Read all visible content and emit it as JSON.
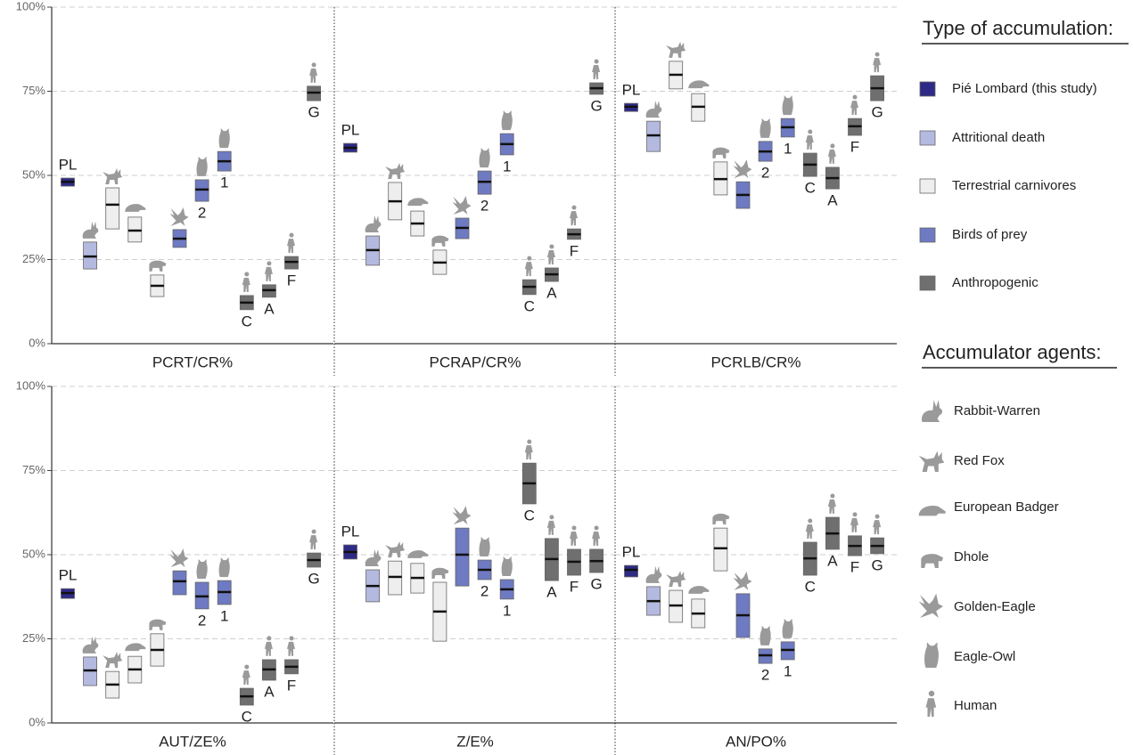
{
  "chart_data": {
    "type": "floating-box",
    "ylim": [
      0,
      100
    ],
    "yticks": [
      {
        "value": 0,
        "label": "0%"
      },
      {
        "value": 25,
        "label": "25%"
      },
      {
        "value": 50,
        "label": "50%"
      },
      {
        "value": 75,
        "label": "75%"
      },
      {
        "value": 100,
        "label": "100%"
      }
    ],
    "grid": true,
    "legend": {
      "type_title": "Type of accumulation:",
      "types": [
        {
          "name": "Pié Lombard (this study)",
          "color": "#2e2a86"
        },
        {
          "name": "Attritional death",
          "color": "#b4b9e0"
        },
        {
          "name": "Terrestrial carnivores",
          "color": "#eeeeee"
        },
        {
          "name": "Birds of prey",
          "color": "#6e7ac2"
        },
        {
          "name": "Anthropogenic",
          "color": "#6f6f6f"
        }
      ],
      "agent_title": "Accumulator agents:",
      "agents": [
        "Rabbit-Warren",
        "Red Fox",
        "European Badger",
        "Dhole",
        "Golden-Eagle",
        "Eagle-Owl",
        "Human"
      ]
    },
    "panels": [
      {
        "xlabel": "PCRT/CR%",
        "items": [
          {
            "type": "Pié Lombard (this study)",
            "label": "PL",
            "low": 46.8,
            "high": 49.2,
            "median": 48.1
          },
          {
            "type": "Attritional death",
            "agent": "Rabbit-Warren",
            "low": 22.2,
            "high": 30.2,
            "median": 25.9
          },
          {
            "type": "Terrestrial carnivores",
            "agent": "Red Fox",
            "low": 34.1,
            "high": 46.3,
            "median": 41.3
          },
          {
            "type": "Terrestrial carnivores",
            "agent": "European Badger",
            "low": 30.2,
            "high": 37.6,
            "median": 33.6
          },
          {
            "type": "Terrestrial carnivores",
            "agent": "Dhole",
            "low": 14.0,
            "high": 20.4,
            "median": 17.2
          },
          {
            "type": "Birds of prey",
            "agent": "Golden-Eagle",
            "low": 28.6,
            "high": 33.9,
            "median": 31.2
          },
          {
            "type": "Birds of prey",
            "agent": "Eagle-Owl",
            "label": "2",
            "low": 42.3,
            "high": 48.7,
            "median": 45.8
          },
          {
            "type": "Birds of prey",
            "agent": "Eagle-Owl",
            "label": "1",
            "low": 51.3,
            "high": 57.1,
            "median": 54.2
          },
          {
            "type": "Anthropogenic",
            "agent": "Human",
            "label": "C",
            "low": 10.1,
            "high": 14.3,
            "median": 12.2
          },
          {
            "type": "Anthropogenic",
            "agent": "Human",
            "label": "A",
            "low": 13.8,
            "high": 17.5,
            "median": 15.9
          },
          {
            "type": "Anthropogenic",
            "agent": "Human",
            "label": "F",
            "low": 22.2,
            "high": 25.9,
            "median": 24.3
          },
          {
            "type": "Anthropogenic",
            "agent": "Human",
            "label": "G",
            "low": 72.2,
            "high": 76.5,
            "median": 74.6
          }
        ]
      },
      {
        "xlabel": "PCRAP/CR%",
        "items": [
          {
            "type": "Pié Lombard (this study)",
            "label": "PL",
            "low": 56.9,
            "high": 59.5,
            "median": 58.2
          },
          {
            "type": "Attritional death",
            "agent": "Rabbit-Warren",
            "low": 23.3,
            "high": 32.0,
            "median": 27.8
          },
          {
            "type": "Terrestrial carnivores",
            "agent": "Red Fox",
            "low": 36.8,
            "high": 47.9,
            "median": 42.3
          },
          {
            "type": "Terrestrial carnivores",
            "agent": "European Badger",
            "low": 32.0,
            "high": 39.4,
            "median": 35.7
          },
          {
            "type": "Terrestrial carnivores",
            "agent": "Dhole",
            "low": 20.6,
            "high": 27.8,
            "median": 24.1
          },
          {
            "type": "Birds of prey",
            "agent": "Golden-Eagle",
            "low": 31.2,
            "high": 37.3,
            "median": 34.4
          },
          {
            "type": "Birds of prey",
            "agent": "Eagle-Owl",
            "label": "2",
            "low": 44.4,
            "high": 51.3,
            "median": 48.1
          },
          {
            "type": "Birds of prey",
            "agent": "Eagle-Owl",
            "label": "1",
            "low": 56.1,
            "high": 62.4,
            "median": 59.3
          },
          {
            "type": "Anthropogenic",
            "agent": "Human",
            "label": "C",
            "low": 14.6,
            "high": 19.0,
            "median": 16.9
          },
          {
            "type": "Anthropogenic",
            "agent": "Human",
            "label": "A",
            "low": 18.5,
            "high": 22.5,
            "median": 20.6
          },
          {
            "type": "Anthropogenic",
            "agent": "Human",
            "label": "F",
            "low": 31.0,
            "high": 34.1,
            "median": 32.5
          },
          {
            "type": "Anthropogenic",
            "agent": "Human",
            "label": "G",
            "low": 74.1,
            "high": 77.5,
            "median": 75.9
          }
        ]
      },
      {
        "xlabel": "PCRLB/CR%",
        "items": [
          {
            "type": "Pié Lombard (this study)",
            "label": "PL",
            "low": 69.0,
            "high": 71.4,
            "median": 70.4
          },
          {
            "type": "Attritional death",
            "agent": "Rabbit-Warren",
            "low": 57.1,
            "high": 66.1,
            "median": 61.9
          },
          {
            "type": "Terrestrial carnivores",
            "agent": "Red Fox",
            "low": 75.7,
            "high": 83.9,
            "median": 79.9
          },
          {
            "type": "Terrestrial carnivores",
            "agent": "European Badger",
            "low": 66.1,
            "high": 74.3,
            "median": 70.4
          },
          {
            "type": "Terrestrial carnivores",
            "agent": "Dhole",
            "low": 44.2,
            "high": 54.0,
            "median": 48.9
          },
          {
            "type": "Birds of prey",
            "agent": "Golden-Eagle",
            "low": 40.2,
            "high": 48.1,
            "median": 44.2
          },
          {
            "type": "Birds of prey",
            "agent": "Eagle-Owl",
            "label": "2",
            "low": 54.2,
            "high": 60.1,
            "median": 57.1
          },
          {
            "type": "Birds of prey",
            "agent": "Eagle-Owl",
            "label": "1",
            "low": 61.4,
            "high": 66.9,
            "median": 64.3
          },
          {
            "type": "Anthropogenic",
            "agent": "Human",
            "label": "C",
            "low": 49.7,
            "high": 56.6,
            "median": 53.2
          },
          {
            "type": "Anthropogenic",
            "agent": "Human",
            "label": "A",
            "low": 46.0,
            "high": 52.4,
            "median": 49.2
          },
          {
            "type": "Anthropogenic",
            "agent": "Human",
            "label": "F",
            "low": 61.9,
            "high": 66.9,
            "median": 64.6
          },
          {
            "type": "Anthropogenic",
            "agent": "Human",
            "label": "G",
            "low": 72.2,
            "high": 79.6,
            "median": 75.9
          }
        ]
      },
      {
        "xlabel": "AUT/ZE%",
        "items": [
          {
            "type": "Pié Lombard (this study)",
            "label": "PL",
            "low": 37.0,
            "high": 39.9,
            "median": 38.6
          },
          {
            "type": "Attritional death",
            "agent": "Rabbit-Warren",
            "low": 11.1,
            "high": 19.6,
            "median": 15.6
          },
          {
            "type": "Terrestrial carnivores",
            "agent": "Red Fox",
            "low": 7.4,
            "high": 15.3,
            "median": 11.4
          },
          {
            "type": "Terrestrial carnivores",
            "agent": "European Badger",
            "low": 11.9,
            "high": 19.8,
            "median": 15.9
          },
          {
            "type": "Terrestrial carnivores",
            "agent": "Dhole",
            "low": 16.9,
            "high": 26.5,
            "median": 21.7
          },
          {
            "type": "Birds of prey",
            "agent": "Golden-Eagle",
            "low": 38.1,
            "high": 45.2,
            "median": 42.1
          },
          {
            "type": "Birds of prey",
            "agent": "Eagle-Owl",
            "label": "2",
            "low": 33.9,
            "high": 41.8,
            "median": 37.6
          },
          {
            "type": "Birds of prey",
            "agent": "Eagle-Owl",
            "label": "1",
            "low": 35.2,
            "high": 42.3,
            "median": 38.9
          },
          {
            "type": "Anthropogenic",
            "agent": "Human",
            "label": "C",
            "low": 5.3,
            "high": 10.3,
            "median": 7.9
          },
          {
            "type": "Anthropogenic",
            "agent": "Human",
            "label": "A",
            "low": 12.7,
            "high": 18.8,
            "median": 15.9
          },
          {
            "type": "Anthropogenic",
            "agent": "Human",
            "label": "F",
            "low": 14.6,
            "high": 18.8,
            "median": 16.7
          },
          {
            "type": "Anthropogenic",
            "agent": "Human",
            "label": "G",
            "low": 46.3,
            "high": 50.5,
            "median": 48.4
          }
        ]
      },
      {
        "xlabel": "Z/E%",
        "items": [
          {
            "type": "Pié Lombard (this study)",
            "label": "PL",
            "low": 48.7,
            "high": 52.9,
            "median": 50.8
          },
          {
            "type": "Attritional death",
            "agent": "Rabbit-Warren",
            "low": 36.0,
            "high": 45.5,
            "median": 40.7
          },
          {
            "type": "Terrestrial carnivores",
            "agent": "Red Fox",
            "low": 38.1,
            "high": 48.1,
            "median": 43.4
          },
          {
            "type": "Terrestrial carnivores",
            "agent": "European Badger",
            "low": 38.6,
            "high": 47.4,
            "median": 43.1
          },
          {
            "type": "Terrestrial carnivores",
            "agent": "Dhole",
            "low": 24.3,
            "high": 41.8,
            "median": 33.1
          },
          {
            "type": "Birds of prey",
            "agent": "Golden-Eagle",
            "low": 40.7,
            "high": 57.9,
            "median": 50.0
          },
          {
            "type": "Birds of prey",
            "agent": "Eagle-Owl",
            "label": "2",
            "low": 42.6,
            "high": 48.4,
            "median": 45.5
          },
          {
            "type": "Birds of prey",
            "agent": "Eagle-Owl",
            "label": "1",
            "low": 36.8,
            "high": 42.6,
            "median": 39.7
          },
          {
            "type": "Anthropogenic",
            "agent": "Human",
            "label": "C",
            "low": 65.1,
            "high": 77.2,
            "median": 71.2
          },
          {
            "type": "Anthropogenic",
            "agent": "Human",
            "label": "A",
            "low": 42.3,
            "high": 54.8,
            "median": 48.7
          },
          {
            "type": "Anthropogenic",
            "agent": "Human",
            "label": "F",
            "low": 43.9,
            "high": 51.6,
            "median": 47.9
          },
          {
            "type": "Anthropogenic",
            "agent": "Human",
            "label": "G",
            "low": 44.7,
            "high": 51.6,
            "median": 48.1
          }
        ]
      },
      {
        "xlabel": "AN/PO%",
        "items": [
          {
            "type": "Pié Lombard (this study)",
            "label": "PL",
            "low": 43.4,
            "high": 46.8,
            "median": 45.5
          },
          {
            "type": "Attritional death",
            "agent": "Rabbit-Warren",
            "low": 32.0,
            "high": 40.5,
            "median": 36.2
          },
          {
            "type": "Terrestrial carnivores",
            "agent": "Red Fox",
            "low": 29.9,
            "high": 39.4,
            "median": 34.9
          },
          {
            "type": "Terrestrial carnivores",
            "agent": "European Badger",
            "low": 28.3,
            "high": 36.8,
            "median": 32.5
          },
          {
            "type": "Terrestrial carnivores",
            "agent": "Dhole",
            "low": 45.2,
            "high": 57.9,
            "median": 51.9
          },
          {
            "type": "Birds of prey",
            "agent": "Golden-Eagle",
            "low": 25.4,
            "high": 38.4,
            "median": 32.0
          },
          {
            "type": "Birds of prey",
            "agent": "Eagle-Owl",
            "label": "2",
            "low": 17.7,
            "high": 22.0,
            "median": 20.1
          },
          {
            "type": "Birds of prey",
            "agent": "Eagle-Owl",
            "label": "1",
            "low": 18.8,
            "high": 24.1,
            "median": 21.7
          },
          {
            "type": "Anthropogenic",
            "agent": "Human",
            "label": "C",
            "low": 43.9,
            "high": 53.7,
            "median": 48.9
          },
          {
            "type": "Anthropogenic",
            "agent": "Human",
            "label": "A",
            "low": 51.6,
            "high": 61.1,
            "median": 56.3
          },
          {
            "type": "Anthropogenic",
            "agent": "Human",
            "label": "F",
            "low": 49.7,
            "high": 55.6,
            "median": 52.6
          },
          {
            "type": "Anthropogenic",
            "agent": "Human",
            "label": "G",
            "low": 50.3,
            "high": 55.0,
            "median": 52.6
          }
        ]
      }
    ]
  }
}
